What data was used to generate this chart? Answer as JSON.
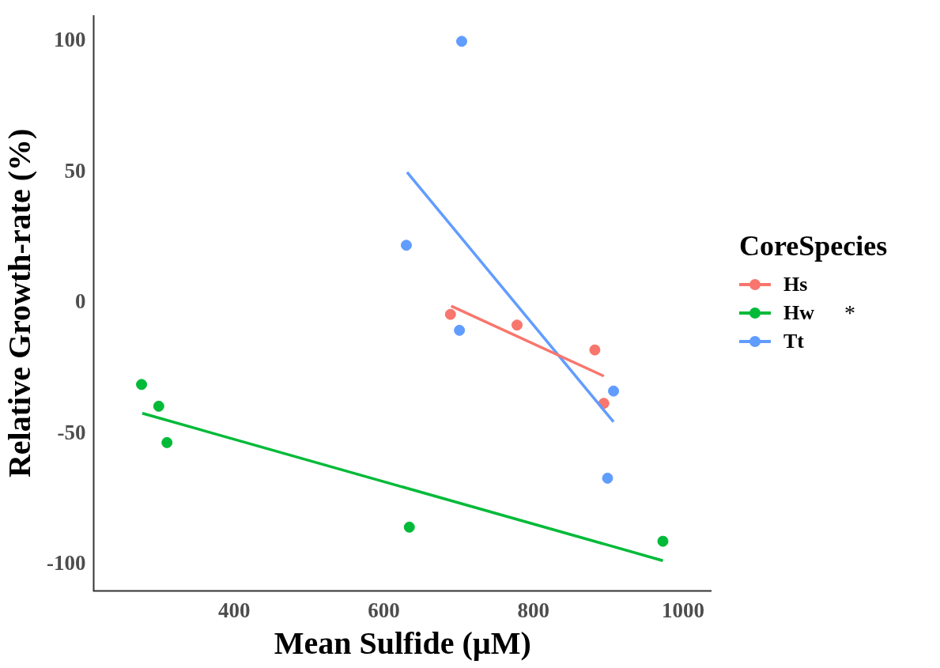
{
  "chart_data": {
    "type": "scatter",
    "xlabel": "Mean Sulfide (µM)",
    "ylabel": "Relative Growth-rate (%)",
    "legend_title": "CoreSpecies",
    "series": [
      {
        "name": "Hs",
        "color": "#f8766d",
        "x": [
          689,
          778,
          882,
          894
        ],
        "values": [
          -4.3,
          -8.4,
          -17.9,
          -38.3
        ]
      },
      {
        "name": "Hw",
        "color": "#00ba38",
        "x": [
          276,
          299,
          310,
          634,
          973
        ],
        "values": [
          -31.1,
          -39.4,
          -53.3,
          -85.6,
          -91
        ]
      },
      {
        "name": "Tt",
        "color": "#619cff",
        "x": [
          630,
          701,
          704,
          899,
          907
        ],
        "values": [
          22.1,
          -10.4,
          100,
          -66.9,
          -33.6
        ]
      },
      {
        "type": "line",
        "marker": "none",
        "color": "#f8766d",
        "x": [
          690,
          894
        ],
        "values": [
          -1.1,
          -27.9
        ]
      },
      {
        "type": "line",
        "marker": "none",
        "color": "#00ba38",
        "x": [
          277,
          973
        ],
        "values": [
          -42.1,
          -98.4
        ]
      },
      {
        "type": "line",
        "marker": "none",
        "color": "#619cff",
        "x": [
          631,
          907
        ],
        "values": [
          50,
          -45.4
        ]
      }
    ],
    "annotations": [
      "*"
    ],
    "xlim": [
      212,
      1038
    ],
    "xticks": [
      400,
      600,
      800,
      1000
    ],
    "ylim": [
      -110,
      110
    ],
    "yticks": [
      -100,
      -50,
      0,
      50,
      100
    ],
    "grid": false,
    "legend": "right",
    "marker": "circle"
  }
}
